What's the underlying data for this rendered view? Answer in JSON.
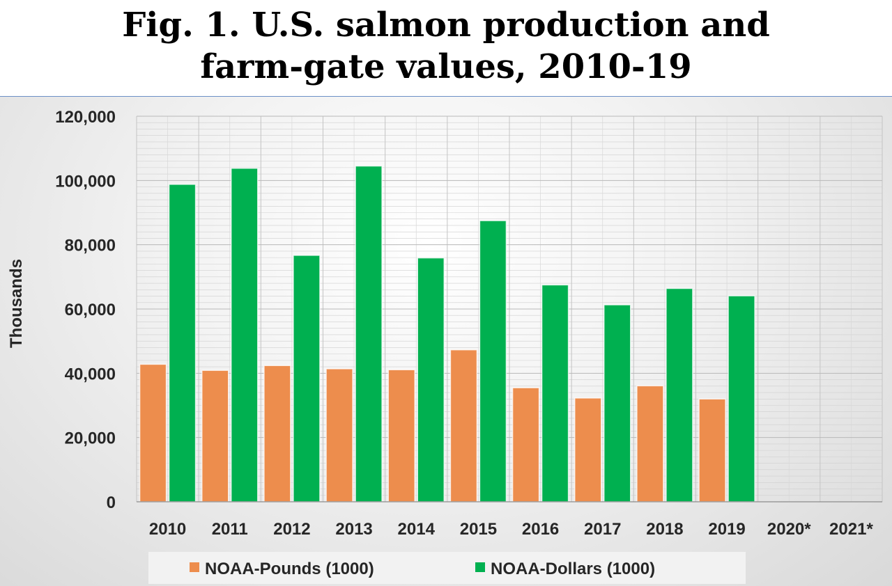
{
  "title": {
    "line1": "Fig. 1. U.S. salmon production and",
    "line2": "farm-gate values, 2010-19"
  },
  "chart_data": {
    "type": "bar",
    "title": "Fig. 1. U.S. salmon production and farm-gate values, 2010-19",
    "xlabel": "",
    "ylabel": "Thousands",
    "ylim": [
      0,
      120000
    ],
    "yticks": [
      "0",
      "20,000",
      "40,000",
      "60,000",
      "80,000",
      "100,000",
      "120,000"
    ],
    "ytick_values": [
      0,
      20000,
      40000,
      60000,
      80000,
      100000,
      120000
    ],
    "categories": [
      "2010",
      "2011",
      "2012",
      "2013",
      "2014",
      "2015",
      "2016",
      "2017",
      "2018",
      "2019",
      "2020*",
      "2021*"
    ],
    "series": [
      {
        "name": "NOAA-Pounds (1000)",
        "color": "#ed8d4d",
        "values": [
          42800,
          40900,
          42400,
          41400,
          41100,
          47300,
          35500,
          32300,
          36100,
          32000,
          null,
          null
        ]
      },
      {
        "name": "NOAA-Dollars (1000)",
        "color": "#00b050",
        "values": [
          98800,
          103800,
          76700,
          104500,
          75900,
          87500,
          67500,
          61300,
          66400,
          64100,
          null,
          null
        ]
      }
    ],
    "grid": true,
    "legend_position": "bottom"
  }
}
